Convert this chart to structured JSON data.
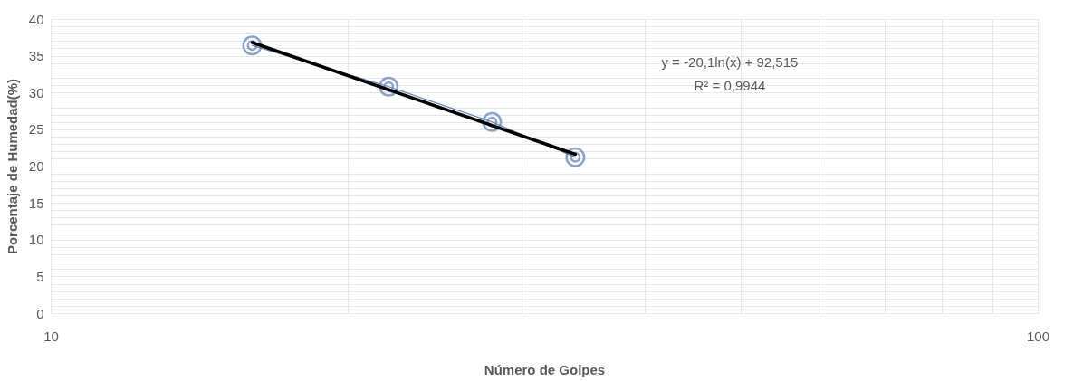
{
  "chart_data": {
    "type": "line",
    "xlabel": "Número de Golpes",
    "ylabel": "Porcentaje de Humedad(%)",
    "log": "x",
    "xlim": [
      10,
      100
    ],
    "xticks": [
      10,
      {
        "value": 20,
        "label": null
      },
      {
        "value": 30,
        "label": null
      },
      {
        "value": 40,
        "label": null
      },
      {
        "value": 50,
        "label": null
      },
      {
        "value": 60,
        "label": null
      },
      {
        "value": 70,
        "label": null
      },
      {
        "value": 80,
        "label": null
      },
      {
        "value": 90,
        "label": null
      },
      100
    ],
    "ylim": [
      0,
      40
    ],
    "yticks": [
      0,
      {
        "value": 1,
        "label": null
      },
      {
        "value": 2,
        "label": null
      },
      {
        "value": 3,
        "label": null
      },
      {
        "value": 4,
        "label": null
      },
      5,
      {
        "value": 6,
        "label": null
      },
      {
        "value": 7,
        "label": null
      },
      {
        "value": 8,
        "label": null
      },
      {
        "value": 9,
        "label": null
      },
      10,
      {
        "value": 11,
        "label": null
      },
      {
        "value": 12,
        "label": null
      },
      {
        "value": 13,
        "label": null
      },
      {
        "value": 14,
        "label": null
      },
      15,
      {
        "value": 16,
        "label": null
      },
      {
        "value": 17,
        "label": null
      },
      {
        "value": 18,
        "label": null
      },
      {
        "value": 19,
        "label": null
      },
      20,
      {
        "value": 21,
        "label": null
      },
      {
        "value": 22,
        "label": null
      },
      {
        "value": 23,
        "label": null
      },
      {
        "value": 24,
        "label": null
      },
      25,
      {
        "value": 26,
        "label": null
      },
      {
        "value": 27,
        "label": null
      },
      {
        "value": 28,
        "label": null
      },
      {
        "value": 29,
        "label": null
      },
      30,
      {
        "value": 31,
        "label": null
      },
      {
        "value": 32,
        "label": null
      },
      {
        "value": 33,
        "label": null
      },
      {
        "value": 34,
        "label": null
      },
      35,
      {
        "value": 36,
        "label": null
      },
      {
        "value": 37,
        "label": null
      },
      {
        "value": 38,
        "label": null
      },
      {
        "value": 39,
        "label": null
      },
      40
    ],
    "grid": true,
    "legend": false,
    "series": [
      {
        "marker": "circle",
        "color": "#5b7db1",
        "x": [
          16,
          22,
          28,
          34
        ],
        "values": [
          36.4,
          30.8,
          26.0,
          21.2
        ]
      },
      {
        "type": "line",
        "marker": "none",
        "color": "#000000",
        "x": [
          16,
          34
        ],
        "values": [
          36.8,
          21.6
        ]
      }
    ],
    "annotations": [
      "y = -20,1ln(x) + 92,515",
      "R² = 0,9944"
    ]
  }
}
